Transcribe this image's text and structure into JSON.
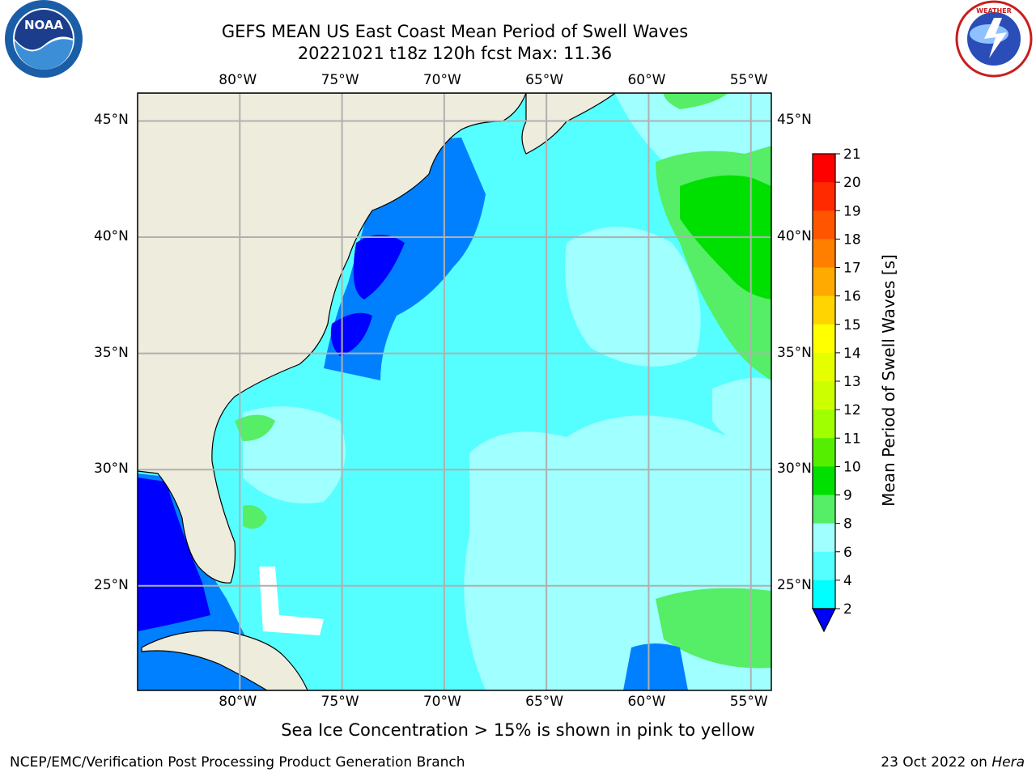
{
  "header": {
    "title_line1": "GEFS MEAN US East Coast Mean Period of Swell Waves",
    "title_line2": "20221021 t18z 120h fcst   Max: 11.36"
  },
  "logos": {
    "left": "NOAA",
    "right": "NATIONAL WEATHER SERVICE"
  },
  "map": {
    "lon_labels": [
      "80°W",
      "75°W",
      "70°W",
      "65°W",
      "60°W",
      "55°W"
    ],
    "lat_labels": [
      "45°N",
      "40°N",
      "35°N",
      "30°N",
      "25°N"
    ],
    "lon_values": [
      -80,
      -75,
      -70,
      -65,
      -60,
      -55
    ],
    "lat_values": [
      45,
      40,
      35,
      30,
      25
    ],
    "lon_range": [
      -85,
      -54
    ],
    "lat_range": [
      20.5,
      46.2
    ],
    "land_color": "#eeecdc",
    "grid_color": "#b0b0b0"
  },
  "colorbar": {
    "label": "Mean Period of Swell Waves [s]",
    "ticks": [
      "21",
      "20",
      "19",
      "18",
      "17",
      "16",
      "15",
      "14",
      "13",
      "12",
      "11",
      "10",
      "9",
      "8",
      "6",
      "4",
      "2"
    ],
    "colors": [
      "#ff0000",
      "#ff2a00",
      "#ff5500",
      "#ff8000",
      "#ffaa00",
      "#ffd400",
      "#ffff00",
      "#e6ff00",
      "#ccff00",
      "#a0ff00",
      "#55ee00",
      "#00e000",
      "#55ee66",
      "#a0ffff",
      "#55ffff",
      "#00ffff",
      "#00d0ff",
      "#0080ff"
    ],
    "under_color": "#0000ff"
  },
  "footer": {
    "note": "Sea Ice Concentration > 15% is shown in pink to yellow",
    "credit": "NCEP/EMC/Verification Post Processing Product Generation Branch",
    "date": "23 Oct 2022 on",
    "machine": "Hera"
  }
}
